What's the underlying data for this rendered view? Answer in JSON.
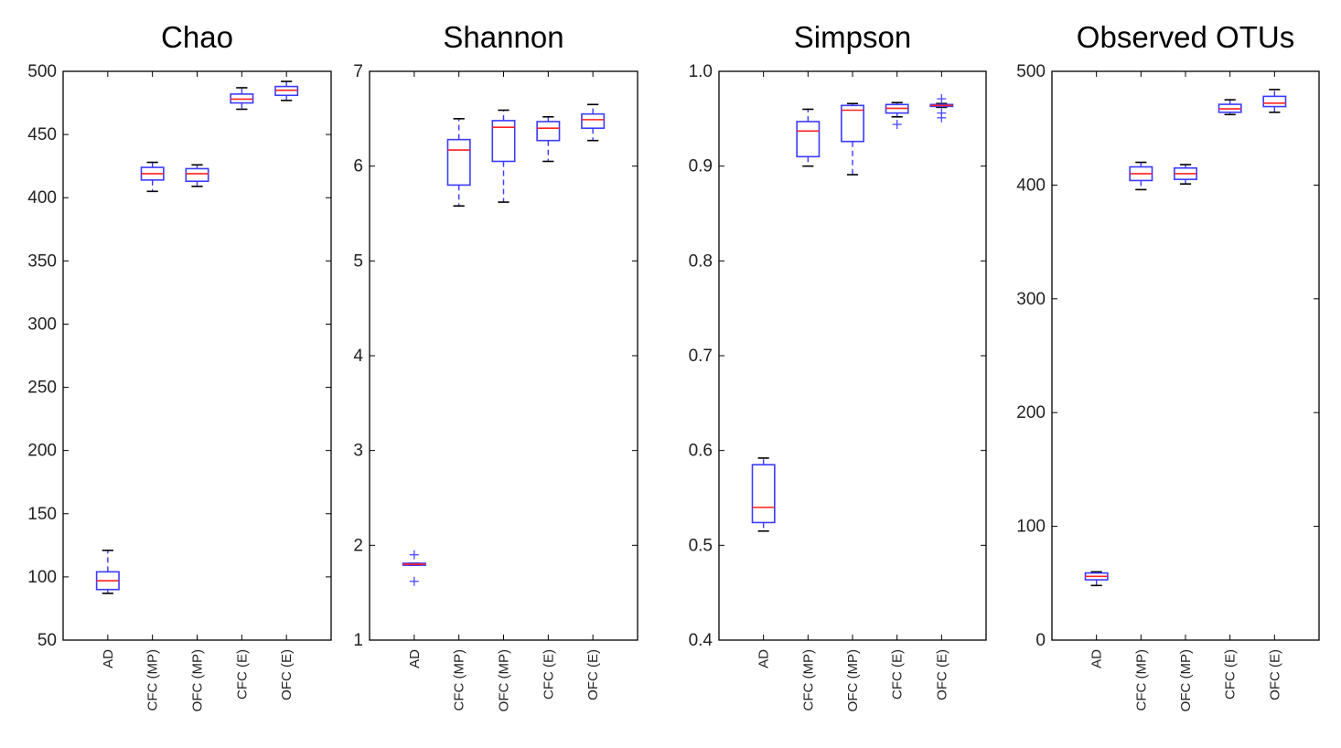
{
  "colors": {
    "box": "#3b3bff",
    "median": "#ff2020",
    "whisker": "#000000",
    "flier": "#4a4aff",
    "axis": "#000000"
  },
  "chart_data": [
    {
      "type": "box",
      "title": "Chao",
      "categories": [
        "AD",
        "CFC (MP)",
        "OFC (MP)",
        "CFC (E)",
        "OFC (E)"
      ],
      "yticks": [
        "50",
        "100",
        "150",
        "200",
        "250",
        "300",
        "350",
        "400",
        "450",
        "500"
      ],
      "ylim": [
        50,
        500
      ],
      "boxes": [
        {
          "whislo": 87,
          "q1": 90,
          "med": 97,
          "q3": 104,
          "whishi": 121,
          "fliers": []
        },
        {
          "whislo": 405,
          "q1": 414,
          "med": 419,
          "q3": 424,
          "whishi": 428,
          "fliers": []
        },
        {
          "whislo": 409,
          "q1": 413,
          "med": 419,
          "q3": 423,
          "whishi": 426,
          "fliers": []
        },
        {
          "whislo": 470,
          "q1": 475,
          "med": 478,
          "q3": 482,
          "whishi": 487,
          "fliers": []
        },
        {
          "whislo": 477,
          "q1": 481,
          "med": 485,
          "q3": 488,
          "whishi": 492,
          "fliers": []
        }
      ]
    },
    {
      "type": "box",
      "title": "Shannon",
      "categories": [
        "AD",
        "CFC (MP)",
        "OFC (MP)",
        "CFC (E)",
        "OFC (E)"
      ],
      "yticks": [
        "1",
        "2",
        "3",
        "4",
        "5",
        "6",
        "7"
      ],
      "ylim": [
        1,
        7
      ],
      "boxes": [
        {
          "whislo": 1.79,
          "q1": 1.79,
          "med": 1.8,
          "q3": 1.81,
          "whishi": 1.81,
          "fliers": [
            1.9,
            1.62
          ]
        },
        {
          "whislo": 5.58,
          "q1": 5.8,
          "med": 6.17,
          "q3": 6.28,
          "whishi": 6.5,
          "fliers": []
        },
        {
          "whislo": 5.62,
          "q1": 6.05,
          "med": 6.41,
          "q3": 6.48,
          "whishi": 6.59,
          "fliers": []
        },
        {
          "whislo": 6.05,
          "q1": 6.27,
          "med": 6.4,
          "q3": 6.47,
          "whishi": 6.52,
          "fliers": []
        },
        {
          "whislo": 6.27,
          "q1": 6.4,
          "med": 6.49,
          "q3": 6.55,
          "whishi": 6.65,
          "fliers": []
        }
      ]
    },
    {
      "type": "box",
      "title": "Simpson",
      "categories": [
        "AD",
        "CFC (MP)",
        "OFC (MP)",
        "CFC (E)",
        "OFC (E)"
      ],
      "yticks": [
        "0.4",
        "0.5",
        "0.6",
        "0.7",
        "0.8",
        "0.9",
        "1.0"
      ],
      "ylim": [
        0.4,
        1.0
      ],
      "boxes": [
        {
          "whislo": 0.515,
          "q1": 0.524,
          "med": 0.54,
          "q3": 0.585,
          "whishi": 0.592,
          "fliers": []
        },
        {
          "whislo": 0.9,
          "q1": 0.91,
          "med": 0.937,
          "q3": 0.947,
          "whishi": 0.96,
          "fliers": []
        },
        {
          "whislo": 0.891,
          "q1": 0.926,
          "med": 0.959,
          "q3": 0.964,
          "whishi": 0.966,
          "fliers": []
        },
        {
          "whislo": 0.952,
          "q1": 0.956,
          "med": 0.961,
          "q3": 0.965,
          "whishi": 0.967,
          "fliers": [
            0.944
          ]
        },
        {
          "whislo": 0.962,
          "q1": 0.963,
          "med": 0.964,
          "q3": 0.965,
          "whishi": 0.966,
          "fliers": [
            0.971,
            0.956,
            0.951
          ]
        }
      ]
    },
    {
      "type": "box",
      "title": "Observed OTUs",
      "categories": [
        "AD",
        "CFC (MP)",
        "OFC (MP)",
        "CFC (E)",
        "OFC (E)"
      ],
      "yticks": [
        "0",
        "100",
        "200",
        "300",
        "400",
        "500"
      ],
      "ylim": [
        0,
        500
      ],
      "boxes": [
        {
          "whislo": 48,
          "q1": 53,
          "med": 56,
          "q3": 59,
          "whishi": 60,
          "fliers": []
        },
        {
          "whislo": 396,
          "q1": 404,
          "med": 410,
          "q3": 416,
          "whishi": 420,
          "fliers": []
        },
        {
          "whislo": 401,
          "q1": 405,
          "med": 410,
          "q3": 415,
          "whishi": 418,
          "fliers": []
        },
        {
          "whislo": 462,
          "q1": 464,
          "med": 467,
          "q3": 471,
          "whishi": 475,
          "fliers": []
        },
        {
          "whislo": 464,
          "q1": 469,
          "med": 472,
          "q3": 478,
          "whishi": 484,
          "fliers": []
        }
      ]
    }
  ]
}
